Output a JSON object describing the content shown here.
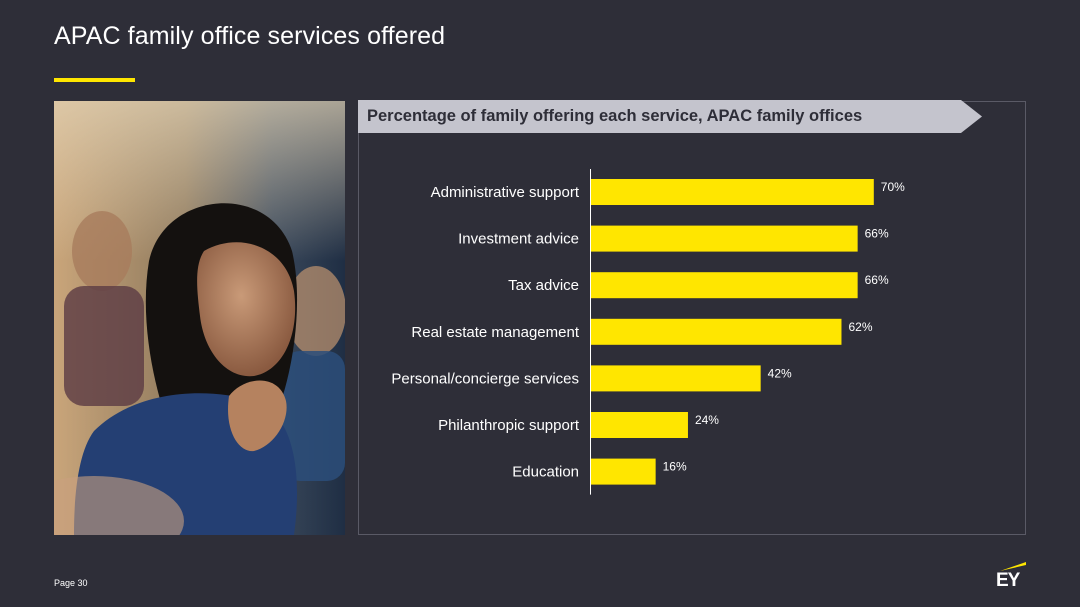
{
  "page": {
    "title": "APAC family office services offered",
    "page_number": "Page 30",
    "logo_text": "EY",
    "colors": {
      "background": "#2e2e38",
      "accent": "#ffe600",
      "header_band": "#c4c4cd",
      "bar": "#ffe600",
      "text": "#ffffff"
    }
  },
  "chart_data": {
    "type": "bar",
    "orientation": "horizontal",
    "title": "Percentage of family offering each service, APAC family offices",
    "categories": [
      "Administrative support",
      "Investment advice",
      "Tax advice",
      "Real estate management",
      "Personal/concierge services",
      "Philanthropic support",
      "Education"
    ],
    "values": [
      70,
      66,
      66,
      62,
      42,
      24,
      16
    ],
    "data_labels": [
      "70%",
      "66%",
      "66%",
      "62%",
      "42%",
      "24%",
      "16%"
    ],
    "xlim": [
      0,
      100
    ],
    "xlabel": "",
    "ylabel": "",
    "grid": false,
    "legend": "none"
  }
}
